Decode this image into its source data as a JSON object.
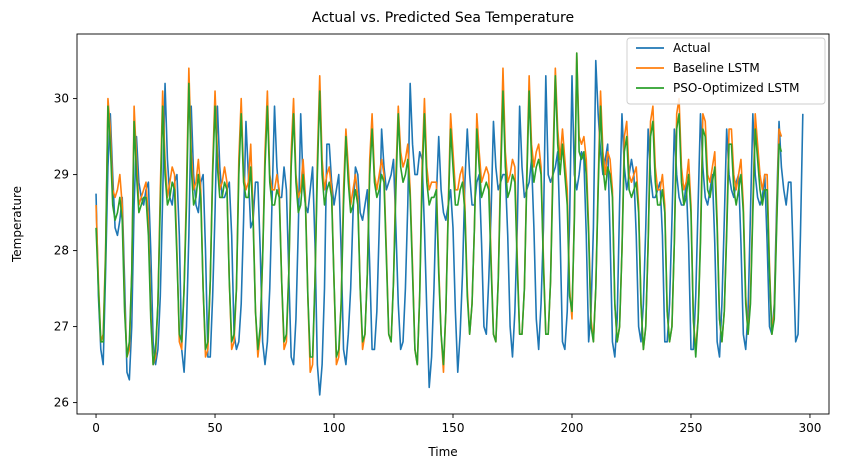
{
  "chart_data": {
    "type": "line",
    "title": "Actual vs. Predicted Sea Temperature",
    "xlabel": "Time",
    "ylabel": "Temperature",
    "xlim": [
      -8,
      308
    ],
    "ylim": [
      25.85,
      30.85
    ],
    "xticks": [
      0,
      50,
      100,
      150,
      200,
      250,
      300
    ],
    "yticks": [
      26,
      27,
      28,
      29,
      30
    ],
    "grid": false,
    "legend_position": "top-right",
    "x_start": 0,
    "x_step": 1,
    "series": [
      {
        "name": "Actual",
        "color": "#1f77b4",
        "values": [
          28.75,
          27.4,
          26.7,
          26.5,
          27.7,
          29.1,
          29.8,
          29.0,
          28.3,
          28.2,
          28.4,
          28.7,
          27.6,
          26.4,
          26.3,
          27.0,
          28.6,
          29.5,
          28.9,
          28.7,
          28.6,
          28.8,
          28.9,
          28.0,
          26.8,
          26.5,
          26.7,
          27.4,
          28.7,
          30.2,
          29.2,
          28.7,
          28.6,
          28.9,
          29.0,
          28.2,
          26.7,
          26.4,
          27.0,
          28.2,
          29.9,
          29.0,
          28.6,
          28.5,
          28.9,
          29.0,
          28.0,
          26.6,
          26.6,
          27.4,
          28.5,
          29.9,
          29.1,
          28.7,
          28.7,
          28.8,
          28.9,
          28.2,
          26.9,
          26.7,
          26.8,
          27.3,
          28.4,
          29.7,
          29.0,
          28.3,
          28.4,
          28.9,
          28.9,
          28.0,
          26.8,
          26.5,
          26.8,
          27.5,
          28.7,
          29.9,
          29.1,
          28.7,
          28.7,
          29.1,
          28.8,
          27.7,
          26.6,
          26.5,
          27.1,
          28.3,
          29.8,
          28.9,
          28.6,
          28.5,
          28.8,
          29.1,
          28.1,
          26.5,
          26.1,
          26.5,
          27.5,
          29.4,
          29.4,
          28.9,
          28.6,
          28.8,
          29.0,
          28.0,
          26.7,
          26.5,
          26.9,
          27.5,
          28.5,
          29.1,
          29.0,
          28.5,
          28.4,
          28.6,
          28.8,
          27.8,
          26.7,
          26.7,
          27.2,
          28.3,
          29.6,
          29.1,
          28.8,
          28.9,
          29.0,
          29.2,
          28.3,
          27.3,
          26.7,
          26.8,
          27.5,
          28.6,
          30.2,
          29.4,
          29.0,
          29.0,
          29.3,
          29.2,
          28.3,
          27.2,
          26.2,
          26.6,
          27.5,
          28.7,
          29.5,
          28.8,
          28.5,
          28.4,
          28.6,
          28.8,
          28.3,
          27.2,
          26.4,
          26.9,
          27.7,
          28.9,
          29.6,
          29.0,
          28.6,
          28.6,
          28.9,
          29.0,
          28.1,
          27.0,
          26.9,
          27.6,
          28.5,
          29.7,
          29.1,
          28.8,
          28.9,
          29.0,
          29.0,
          28.2,
          27.0,
          26.6,
          27.2,
          28.3,
          29.9,
          29.1,
          28.7,
          28.8,
          28.9,
          29.2,
          28.3,
          27.1,
          26.7,
          27.3,
          28.3,
          30.3,
          29.0,
          28.9,
          29.0,
          29.1,
          29.3,
          28.2,
          26.8,
          26.7,
          27.2,
          28.4,
          30.3,
          29.0,
          28.8,
          29.0,
          29.3,
          29.2,
          28.2,
          26.8,
          27.2,
          28.3,
          30.5,
          29.8,
          29.3,
          29.0,
          29.2,
          29.4,
          28.2,
          26.8,
          26.6,
          27.1,
          28.6,
          29.8,
          29.1,
          28.8,
          29.0,
          29.2,
          29.0,
          28.2,
          27.0,
          26.8,
          27.3,
          28.3,
          29.6,
          29.0,
          28.7,
          28.7,
          28.8,
          28.9,
          28.2,
          26.8,
          26.8,
          27.3,
          28.4,
          29.6,
          29.0,
          28.7,
          28.6,
          28.6,
          28.9,
          28.1,
          26.7,
          26.7,
          27.4,
          28.6,
          29.8,
          29.1,
          28.7,
          28.6,
          28.8,
          29.0,
          28.1,
          26.8,
          26.6,
          27.3,
          28.4,
          29.6,
          29.0,
          28.8,
          28.7,
          28.9,
          29.0,
          28.1,
          26.9,
          26.7,
          27.2,
          28.5,
          29.8,
          29.0,
          28.7,
          28.6,
          28.7,
          29.0,
          28.1,
          27.0,
          26.9,
          27.3,
          28.6,
          29.7,
          29.1,
          28.8,
          28.6,
          28.9,
          28.9,
          27.9,
          26.8,
          26.9,
          28.2,
          29.8
        ]
      },
      {
        "name": "Baseline LSTM",
        "color": "#ff7f0e",
        "values": [
          28.6,
          27.6,
          26.8,
          26.9,
          28.0,
          30.0,
          29.6,
          28.8,
          28.7,
          28.8,
          29.0,
          28.6,
          27.3,
          26.6,
          26.7,
          27.7,
          29.9,
          29.2,
          28.6,
          28.7,
          28.8,
          28.9,
          28.4,
          27.2,
          26.5,
          26.6,
          27.3,
          28.8,
          30.1,
          29.2,
          28.7,
          28.9,
          29.1,
          29.0,
          28.0,
          26.8,
          26.7,
          27.5,
          28.8,
          30.4,
          29.3,
          28.8,
          28.9,
          29.2,
          28.8,
          27.5,
          26.6,
          26.7,
          27.6,
          29.1,
          30.1,
          29.3,
          28.8,
          28.9,
          29.1,
          28.9,
          27.6,
          26.7,
          26.8,
          27.5,
          29.2,
          30.0,
          29.0,
          28.8,
          28.9,
          29.4,
          28.5,
          27.2,
          26.6,
          26.9,
          27.9,
          29.3,
          30.1,
          29.0,
          28.8,
          28.8,
          29.0,
          28.8,
          27.6,
          26.7,
          26.8,
          27.7,
          29.3,
          30.0,
          29.0,
          28.7,
          28.8,
          29.2,
          28.7,
          27.4,
          26.4,
          26.5,
          27.6,
          29.2,
          30.3,
          29.2,
          28.8,
          29.0,
          29.1,
          28.8,
          27.6,
          26.5,
          26.6,
          27.3,
          28.8,
          29.6,
          29.1,
          28.6,
          28.8,
          29.0,
          28.7,
          27.5,
          26.7,
          26.9,
          27.7,
          29.2,
          29.8,
          29.0,
          28.8,
          29.0,
          29.2,
          29.0,
          28.0,
          26.9,
          26.8,
          27.6,
          29.0,
          29.9,
          29.3,
          29.1,
          29.2,
          29.4,
          28.8,
          27.8,
          26.7,
          26.5,
          27.4,
          29.1,
          30.0,
          29.1,
          28.8,
          28.9,
          28.9,
          28.9,
          27.8,
          26.9,
          26.4,
          27.2,
          28.6,
          29.8,
          29.3,
          28.8,
          28.8,
          29.0,
          29.1,
          28.6,
          27.5,
          26.9,
          27.3,
          28.3,
          29.8,
          29.3,
          28.9,
          29.0,
          29.1,
          29.0,
          27.9,
          26.9,
          26.8,
          27.6,
          29.1,
          30.4,
          29.3,
          28.9,
          29.0,
          29.2,
          29.1,
          27.9,
          26.9,
          26.9,
          27.5,
          29.0,
          30.3,
          29.4,
          29.1,
          29.3,
          29.4,
          29.1,
          27.9,
          26.9,
          26.9,
          27.6,
          29.2,
          30.4,
          29.6,
          29.2,
          29.6,
          29.2,
          28.8,
          27.5,
          27.1,
          28.5,
          30.6,
          29.5,
          29.4,
          29.5,
          29.2,
          28.3,
          27.1,
          26.8,
          27.5,
          28.9,
          30.1,
          29.3,
          29.0,
          29.3,
          29.2,
          28.8,
          27.3,
          26.8,
          27.0,
          28.0,
          29.5,
          29.7,
          29.0,
          28.9,
          29.0,
          29.1,
          28.6,
          27.3,
          26.7,
          27.0,
          28.1,
          29.7,
          29.9,
          29.1,
          28.8,
          28.8,
          29.0,
          28.6,
          27.2,
          26.8,
          27.0,
          28.1,
          29.8,
          30.0,
          29.1,
          28.8,
          28.9,
          29.2,
          28.6,
          27.1,
          26.7,
          27.1,
          28.2,
          29.8,
          29.7,
          29.0,
          28.9,
          29.1,
          29.3,
          28.4,
          27.1,
          26.8,
          27.2,
          28.3,
          29.6,
          29.6,
          29.0,
          28.8,
          29.0,
          29.2,
          28.6,
          27.4,
          26.9,
          27.4,
          28.6,
          29.8,
          29.4,
          29.0,
          28.8,
          29.0,
          29.0,
          27.8,
          26.9,
          27.2,
          28.4,
          29.6,
          29.5
        ]
      },
      {
        "name": "PSO-Optimized LSTM",
        "color": "#2ca02c",
        "values": [
          28.3,
          27.5,
          26.8,
          26.8,
          27.9,
          29.9,
          29.4,
          28.6,
          28.4,
          28.5,
          28.7,
          28.4,
          27.2,
          26.6,
          26.8,
          27.7,
          29.7,
          29.0,
          28.5,
          28.6,
          28.7,
          28.7,
          28.2,
          27.1,
          26.5,
          26.7,
          27.3,
          28.6,
          29.9,
          29.0,
          28.6,
          28.7,
          28.9,
          28.8,
          27.9,
          26.9,
          26.8,
          27.5,
          28.6,
          30.2,
          29.1,
          28.6,
          28.7,
          29.0,
          28.7,
          27.5,
          26.7,
          26.8,
          27.6,
          29.0,
          29.9,
          29.1,
          28.7,
          28.7,
          28.9,
          28.8,
          27.6,
          26.8,
          26.9,
          27.5,
          29.0,
          29.8,
          28.9,
          28.7,
          28.7,
          29.1,
          28.4,
          27.2,
          26.7,
          27.0,
          27.9,
          29.1,
          29.9,
          28.9,
          28.6,
          28.6,
          28.8,
          28.7,
          27.6,
          26.8,
          26.9,
          27.7,
          29.1,
          29.8,
          28.9,
          28.5,
          28.6,
          29.0,
          28.6,
          27.4,
          26.6,
          26.6,
          27.6,
          29.0,
          30.1,
          29.0,
          28.6,
          28.8,
          28.9,
          28.7,
          27.6,
          26.6,
          26.7,
          27.3,
          28.6,
          29.5,
          28.9,
          28.5,
          28.6,
          28.8,
          28.6,
          27.5,
          26.8,
          26.9,
          27.7,
          29.0,
          29.6,
          28.9,
          28.7,
          28.8,
          29.0,
          28.9,
          27.9,
          26.9,
          26.8,
          27.6,
          28.8,
          29.8,
          29.1,
          28.9,
          29.0,
          29.2,
          28.7,
          27.7,
          26.7,
          26.5,
          27.4,
          28.9,
          29.8,
          28.9,
          28.6,
          28.7,
          28.7,
          28.8,
          27.7,
          26.9,
          26.5,
          27.2,
          28.5,
          29.6,
          29.1,
          28.6,
          28.6,
          28.8,
          28.9,
          28.5,
          27.4,
          26.9,
          27.3,
          28.3,
          29.6,
          29.1,
          28.7,
          28.8,
          28.9,
          28.8,
          27.8,
          26.9,
          26.8,
          27.6,
          28.9,
          30.1,
          29.1,
          28.7,
          28.8,
          29.0,
          28.9,
          27.8,
          26.9,
          26.9,
          27.5,
          28.9,
          30.1,
          29.2,
          28.9,
          29.1,
          29.2,
          29.0,
          27.8,
          26.9,
          26.9,
          27.6,
          29.0,
          30.3,
          29.4,
          29.0,
          29.4,
          29.0,
          28.6,
          27.4,
          27.2,
          28.4,
          30.6,
          29.3,
          29.2,
          29.3,
          29.0,
          28.2,
          27.0,
          26.8,
          27.5,
          28.8,
          29.9,
          29.1,
          28.8,
          29.1,
          29.0,
          28.7,
          27.3,
          26.8,
          27.0,
          28.0,
          29.3,
          29.5,
          28.8,
          28.7,
          28.8,
          28.9,
          28.5,
          27.3,
          26.7,
          27.0,
          28.1,
          29.5,
          29.7,
          28.9,
          28.6,
          28.6,
          28.8,
          28.5,
          27.2,
          26.8,
          27.0,
          28.1,
          29.6,
          29.8,
          28.9,
          28.6,
          28.7,
          29.0,
          28.5,
          27.1,
          26.6,
          27.1,
          28.1,
          29.6,
          29.5,
          28.8,
          28.7,
          28.9,
          29.1,
          28.3,
          27.1,
          26.8,
          27.2,
          28.2,
          29.4,
          29.4,
          28.8,
          28.6,
          28.8,
          29.0,
          28.5,
          27.3,
          26.9,
          27.3,
          28.5,
          29.6,
          29.2,
          28.8,
          28.6,
          28.8,
          28.8,
          27.7,
          26.9,
          27.1,
          28.3,
          29.4,
          29.3
        ]
      }
    ]
  }
}
